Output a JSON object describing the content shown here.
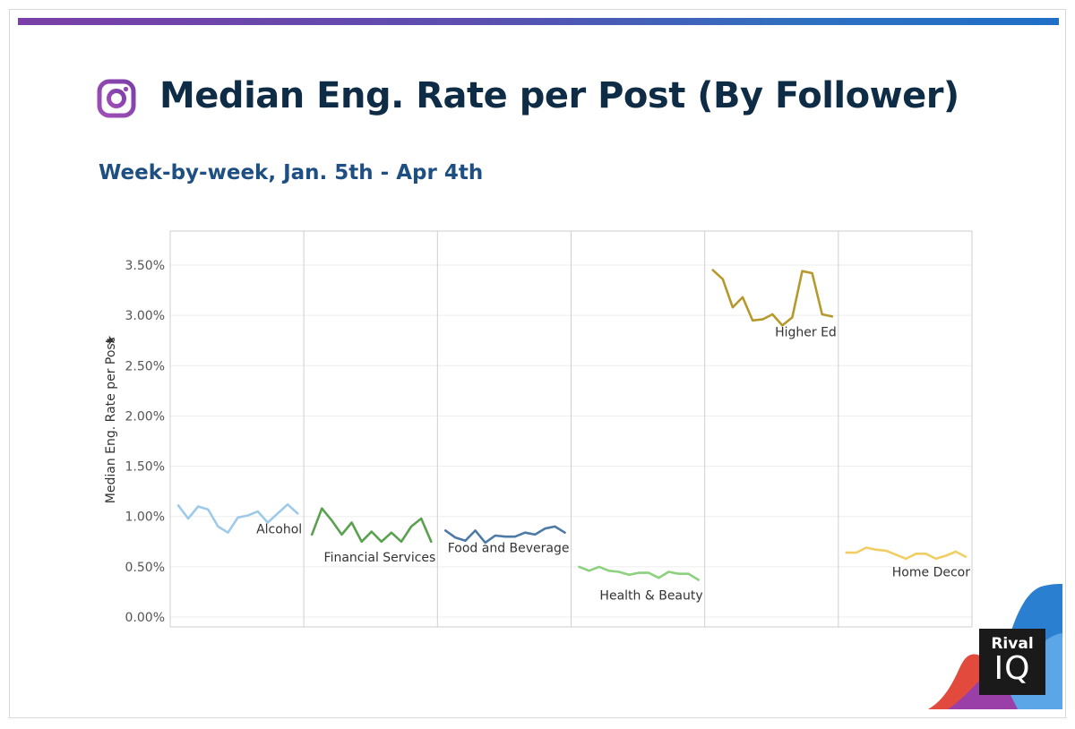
{
  "header": {
    "title": "Median Eng. Rate per Post (By Follower)",
    "subtitle": "Week-by-week, Jan. 5th - Apr 4th"
  },
  "brand": {
    "word1": "Rival",
    "word2": "IQ",
    "accent": "#1f6fc8",
    "icon": "instagram-icon"
  },
  "chart_data": {
    "type": "line",
    "ylabel": "Median Eng. Rate per Post",
    "ylim": [
      0,
      3.8
    ],
    "yticks": [
      0,
      0.5,
      1,
      1.5,
      2,
      2.5,
      3,
      3.5
    ],
    "ytick_labels": [
      "0.00%",
      "0.50%",
      "1.00%",
      "1.50%",
      "2.00%",
      "2.50%",
      "3.00%",
      "3.50%"
    ],
    "grid": true,
    "series": [
      {
        "name": "Alcohol",
        "color": "#9ecae9",
        "values": [
          1.11,
          0.98,
          1.1,
          1.07,
          0.9,
          0.84,
          0.99,
          1.01,
          1.05,
          0.94,
          1.03,
          1.12,
          1.03
        ]
      },
      {
        "name": "Financial Services",
        "color": "#59a14f",
        "values": [
          0.82,
          1.08,
          0.96,
          0.82,
          0.94,
          0.75,
          0.85,
          0.75,
          0.84,
          0.75,
          0.9,
          0.98,
          0.75
        ]
      },
      {
        "name": "Food and Beverage",
        "color": "#4e79a7",
        "values": [
          0.86,
          0.79,
          0.76,
          0.86,
          0.74,
          0.81,
          0.8,
          0.8,
          0.84,
          0.82,
          0.88,
          0.9,
          0.84
        ]
      },
      {
        "name": "Health & Beauty",
        "color": "#8cd17d",
        "values": [
          0.5,
          0.46,
          0.5,
          0.46,
          0.45,
          0.42,
          0.44,
          0.44,
          0.39,
          0.45,
          0.43,
          0.43,
          0.37
        ]
      },
      {
        "name": "Higher Ed",
        "color": "#b6992d",
        "values": [
          3.45,
          3.36,
          3.08,
          3.18,
          2.95,
          2.96,
          3.01,
          2.9,
          2.98,
          3.44,
          3.42,
          3.01,
          2.99
        ]
      },
      {
        "name": "Home Decor",
        "color": "#f1ce63",
        "values": [
          0.64,
          0.64,
          0.69,
          0.67,
          0.66,
          0.62,
          0.58,
          0.63,
          0.63,
          0.58,
          0.61,
          0.65,
          0.6
        ]
      }
    ]
  }
}
